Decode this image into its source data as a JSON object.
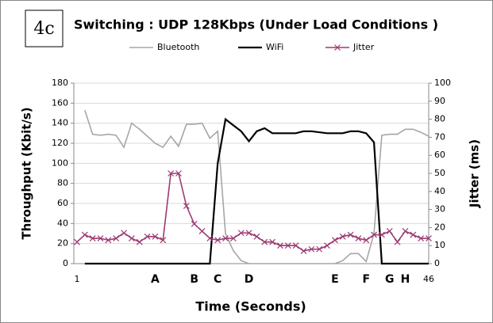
{
  "chart_data": {
    "type": "line",
    "label": "4c",
    "title": "Switching : UDP 128Kbps (Under Load Conditions )",
    "xlabel": "Time (Seconds)",
    "ylabel": "Throughput (Kbit/s)",
    "y2label": "Jitter (ms)",
    "categories": [
      "1",
      null,
      null,
      null,
      null,
      null,
      null,
      null,
      null,
      null,
      "A",
      null,
      null,
      null,
      null,
      "B",
      null,
      null,
      "C",
      null,
      null,
      null,
      "D",
      null,
      null,
      null,
      null,
      null,
      null,
      null,
      null,
      null,
      null,
      "E",
      null,
      null,
      null,
      "F",
      null,
      null,
      "G",
      null,
      "H",
      null,
      null,
      "46"
    ],
    "series": [
      {
        "name": "Bluetooth",
        "color": "#a6a6a6",
        "values": [
          null,
          153,
          129,
          128,
          129,
          128,
          116,
          140,
          134,
          127,
          120,
          116,
          127,
          117,
          139,
          139,
          140,
          125,
          132,
          30,
          13,
          3,
          0,
          0,
          0,
          0,
          0,
          0,
          0,
          0,
          0,
          0,
          0,
          0,
          3,
          10,
          10,
          2,
          30,
          128,
          129,
          129,
          134,
          134,
          131,
          127
        ]
      },
      {
        "name": "WiFi",
        "color": "#000000",
        "values": [
          null,
          0,
          0,
          0,
          0,
          0,
          0,
          0,
          0,
          0,
          0,
          0,
          0,
          0,
          0,
          0,
          0,
          0,
          100,
          144,
          138,
          132,
          122,
          132,
          135,
          130,
          130,
          130,
          130,
          132,
          132,
          131,
          130,
          130,
          130,
          132,
          132,
          130,
          121,
          0,
          0,
          0,
          0,
          0,
          0,
          0
        ]
      },
      {
        "name": "Jitter",
        "color": "#9c3a72",
        "axis": "y2",
        "marker": "x",
        "values": [
          12,
          16,
          14,
          14,
          13,
          14,
          17,
          14,
          12,
          15,
          15,
          13,
          50,
          50,
          32,
          22,
          18,
          14,
          13,
          14,
          14,
          17,
          17,
          15,
          12,
          12,
          10,
          10,
          10,
          7,
          8,
          8,
          10,
          13,
          15,
          16,
          14,
          13,
          16,
          16,
          18,
          12,
          18,
          16,
          14,
          14
        ]
      }
    ],
    "ylim": [
      0,
      180
    ],
    "yticks": [
      0,
      20,
      40,
      60,
      80,
      100,
      120,
      140,
      160,
      180
    ],
    "y2lim": [
      0,
      100
    ],
    "y2ticks": [
      0,
      10,
      20,
      30,
      40,
      50,
      60,
      70,
      80,
      90,
      100
    ],
    "grid": true,
    "legend": "top"
  }
}
